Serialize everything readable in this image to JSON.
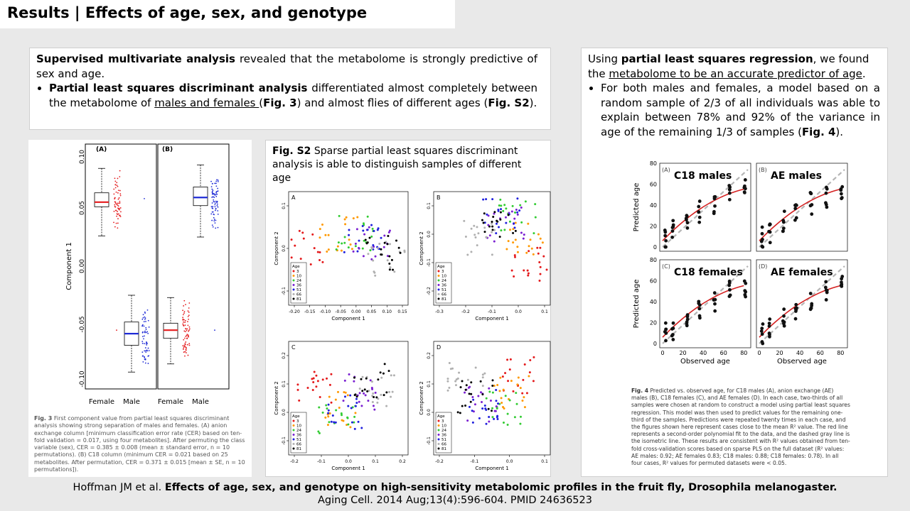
{
  "slide": {
    "title": "Results | Effects of age, sex, and genotype"
  },
  "left_text": {
    "p1_bold": "Supervised multivariate analysis",
    "p1_rest": " revealed that the metabolome is strongly predictive of sex and age.",
    "b1_bold": "Partial least squares discriminant analysis",
    "b1_text": " differentiated almost completely between the metabolome of ",
    "b1_underline": "males and females ",
    "b1_open": "(",
    "b1_fig": "Fig. 3",
    "b1_mid": ") and almost flies of different ages (",
    "b1_fig2": "Fig. S2",
    "b1_end": ")."
  },
  "right_text": {
    "p1_a": "Using ",
    "p1_bold": "partial least squares regression",
    "p1_b": ", we found the ",
    "p1_underline": "metabolome to be an accurate predictor of age",
    "p1_c": ".",
    "b1_a": "For both males and females, a model based on a random sample of 2/3 of all individuals was able to explain between 78% and 92% of the variance in age of the remaining 1/3 of samples (",
    "b1_fig": "Fig. 4",
    "b1_c": ")."
  },
  "fig3": {
    "panel_a": "(A)",
    "panel_b": "(B)",
    "ylabel": "Component 1",
    "yticks": [
      "0.10",
      "0.05",
      "0.00",
      "-0.05",
      "-0.10"
    ],
    "xticks": [
      "Female",
      "Male",
      "Female",
      "Male"
    ],
    "caption_label": "Fig. 3",
    "caption": " First component value from partial least squares discriminant analysis showing strong separation of males and females. (A) anion exchange column [minimum classification error rate (CER) based on ten-fold validation = 0.017, using four metabolites]. After permuting the class variable (sex), CER = 0.385 ± 0.008 (mean ± standard error, n = 10 permutations). (B) C18 column (minimum CER = 0.021 based on 25 metabolites. After permutation, CER = 0.371 ± 0.015 [mean ± SE, n = 10 permutations])."
  },
  "figs2": {
    "caption_label": "Fig. S2",
    "caption": " Sparse partial least squares discriminant analysis is able to distinguish samples of different age",
    "xlabel": "Component 1",
    "ylabel": "Component 2",
    "legend_title": "Age",
    "legend_items": [
      "3",
      "10",
      "24",
      "36",
      "51",
      "66",
      "81"
    ],
    "panels": [
      {
        "label": "A",
        "xticks": [
          "-0.20",
          "-0.15",
          "-0.10",
          "-0.05",
          "0.00",
          "0.05",
          "0.10",
          "0.15"
        ],
        "yticks": [
          "0.1",
          "0.0",
          "-0.1"
        ]
      },
      {
        "label": "B",
        "xticks": [
          "-0.3",
          "-0.2",
          "-0.1",
          "0.0",
          "0.1"
        ],
        "yticks": [
          "0.1",
          "0.0",
          "-0.1",
          "-0.2"
        ]
      },
      {
        "label": "C",
        "xticks": [
          "-0.2",
          "-0.1",
          "0.0",
          "0.1",
          "0.2"
        ],
        "yticks": [
          "0.2",
          "0.1",
          "0.0",
          "-0.1"
        ]
      },
      {
        "label": "D",
        "xticks": [
          "-0.2",
          "-0.1",
          "0.0",
          "0.1"
        ],
        "yticks": [
          "0.2",
          "0.1",
          "0.0",
          "-0.1"
        ]
      }
    ]
  },
  "fig4": {
    "panels": [
      {
        "tag": "(A)",
        "name": "C18 males"
      },
      {
        "tag": "(B)",
        "name": "AE males"
      },
      {
        "tag": "(C)",
        "name": "C18 females"
      },
      {
        "tag": "(D)",
        "name": "AE females"
      }
    ],
    "ylabel": "Predicted age",
    "xlabel": "Observed age",
    "ticks": [
      "0",
      "20",
      "40",
      "60",
      "80"
    ],
    "caption_label": "Fig. 4",
    "caption": " Predicted vs. observed age, for C18 males (A), anion exchange (AE) males (B), C18 females (C), and AE females (D). In each case, two-thirds of all samples were chosen at random to construct a model using partial least squares regression. This model was then used to predict values for the remaining one-third of the samples. Predictions were repeated twenty times in each case, and the figures shown here represent cases close to the mean R² value. The red line represents a second-order polynomial fit to the data, and the dashed gray line is the isometric line. These results are consistent with R² values obtained from ten-fold cross-validation scores based on sparse PLS on the full dataset (R² values: AE males: 0.92; AE females 0.83; C18 males: 0.88; C18 females: 0.78). In all four cases, R² values for permuted datasets were < 0.05."
  },
  "footer": {
    "authors": "Hoffman JM et al. ",
    "title": "Effects of age, sex, and genotype on high-sensitivity metabolomic profiles in the fruit fly, Drosophila melanogaster.",
    "journal": "Aging Cell. 2014 Aug;13(4):596-604. PMID 24636523"
  },
  "colors": {
    "age_3": "#e41a1c",
    "age_10": "#ff9900",
    "age_24": "#33cc33",
    "age_36": "#7a1fd1",
    "age_51": "#2020dd",
    "age_66": "#b0b0b0",
    "age_81": "#000000",
    "female": "#e41a1c",
    "male": "#1f2bd6"
  }
}
